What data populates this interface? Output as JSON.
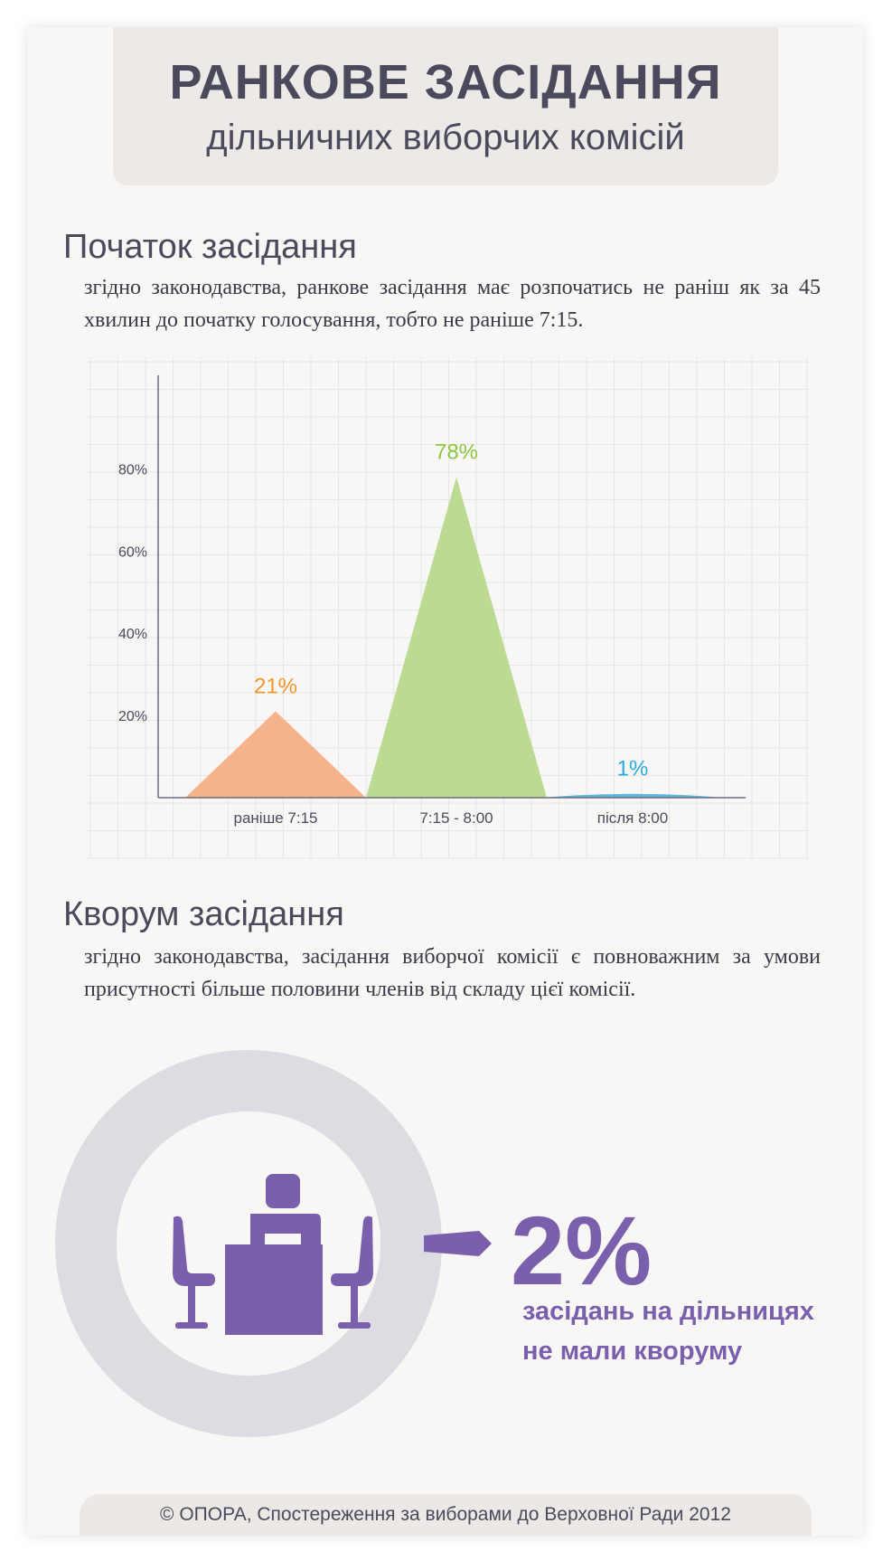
{
  "header": {
    "title": "РАНКОВЕ ЗАСІДАННЯ",
    "subtitle": "дільничних виборчих комісій"
  },
  "section1": {
    "title": "Початок засідання",
    "text": "згідно законодавства, ранкове засідання має розпочатись не раніш як за 45 хвилин до початку голосування, тобто не раніше 7:15."
  },
  "chart_data": {
    "type": "area",
    "categories": [
      "раніше 7:15",
      "7:15 - 8:00",
      "після 8:00"
    ],
    "values": [
      21,
      78,
      1
    ],
    "data_labels": [
      "21%",
      "78%",
      "1%"
    ],
    "colors": [
      "#f5ae82",
      "#b8d98c",
      "#5fb7e0"
    ],
    "label_colors": [
      "#f0962c",
      "#8cc63f",
      "#29abe2"
    ],
    "y_ticks": [
      "20%",
      "40%",
      "60%",
      "80%"
    ],
    "ylim": [
      0,
      85
    ],
    "grid": true
  },
  "section2": {
    "title": "Кворум засідання",
    "text": "згідно законодавства, засідання виборчої комісії є повноважним за умови присутності більше половини членів від складу цієї комісії."
  },
  "quorum": {
    "value": "2%",
    "line1": "засідань на дільницях",
    "line2": "не мали кворуму",
    "accent": "#7a5fad",
    "ring_color": "#dcdce2",
    "icon": "meeting-table-icon"
  },
  "footer": {
    "text": "© ОПОРА, Спостереження за виборами до Верховної Ради 2012"
  }
}
